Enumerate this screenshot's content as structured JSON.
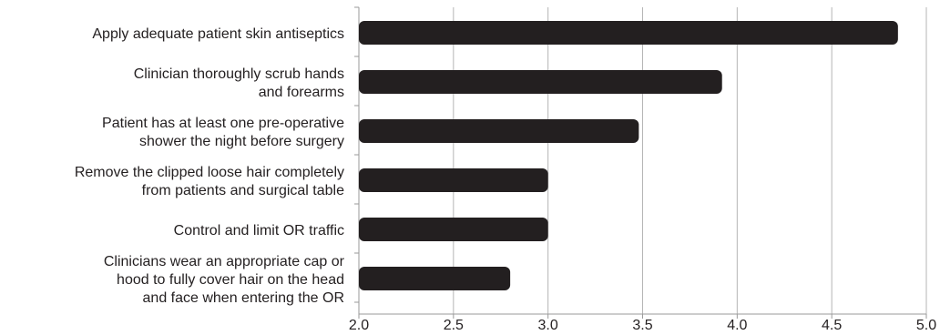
{
  "chart_data": {
    "type": "bar",
    "orientation": "horizontal",
    "categories": [
      [
        "Apply adequate patient skin antiseptics"
      ],
      [
        "Clinician thoroughly scrub hands",
        "and forearms"
      ],
      [
        "Patient has at least one pre-operative",
        "shower the night before surgery"
      ],
      [
        "Remove the clipped loose hair completely",
        "from patients and surgical table"
      ],
      [
        "Control and limit OR traffic"
      ],
      [
        "Clinicians wear an appropriate cap or",
        "hood to fully cover hair on the head",
        "and face when entering the OR"
      ]
    ],
    "values": [
      4.85,
      3.92,
      3.48,
      3.0,
      3.0,
      2.8
    ],
    "xlim": [
      2.0,
      5.0
    ],
    "xticks": [
      "2.0",
      "2.5",
      "3.0",
      "3.5",
      "4.0",
      "4.5",
      "5.0"
    ],
    "grid": "vertical",
    "bar_color": "#231f20",
    "grid_color": "#b5b5b5",
    "title": "",
    "xlabel": "",
    "ylabel": ""
  }
}
